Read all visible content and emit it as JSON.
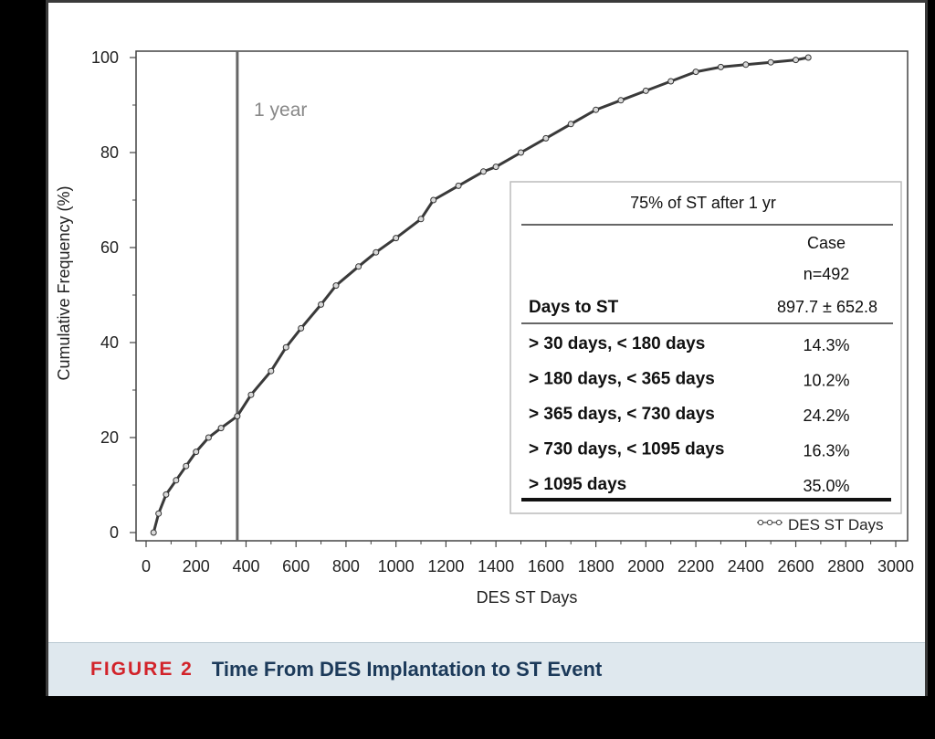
{
  "caption": {
    "label": "FIGURE 2",
    "title": "Time From DES Implantation to ST Event"
  },
  "chart_data": {
    "type": "line",
    "xlabel": "DES ST Days",
    "ylabel": "Cumulative Frequency (%)",
    "xlim": [
      0,
      3000
    ],
    "ylim": [
      0,
      100
    ],
    "x_ticks": [
      "0",
      "200",
      "400",
      "600",
      "800",
      "1000",
      "1200",
      "1400",
      "1600",
      "1800",
      "2000",
      "2200",
      "2400",
      "2600",
      "2800",
      "3000"
    ],
    "y_ticks": [
      "0",
      "20",
      "40",
      "60",
      "80",
      "100"
    ],
    "reference_line": {
      "x": 365,
      "label": "1 year"
    },
    "legend": {
      "label": "DES ST Days",
      "position": "bottom-right"
    },
    "series": [
      {
        "name": "DES ST Days",
        "x": [
          30,
          50,
          80,
          120,
          160,
          200,
          250,
          300,
          365,
          420,
          500,
          560,
          620,
          700,
          760,
          850,
          920,
          1000,
          1100,
          1150,
          1250,
          1350,
          1400,
          1500,
          1600,
          1700,
          1800,
          1900,
          2000,
          2100,
          2200,
          2300,
          2400,
          2500,
          2600,
          2650
        ],
        "y": [
          0,
          4,
          8,
          11,
          14,
          17,
          20,
          22,
          24.5,
          29,
          34,
          39,
          43,
          48,
          52,
          56,
          59,
          62,
          66,
          70,
          73,
          76,
          77,
          80,
          83,
          86,
          89,
          91,
          93,
          95,
          97,
          98,
          98.5,
          99,
          99.5,
          100
        ]
      }
    ]
  },
  "table": {
    "header": "75% of ST after 1 yr",
    "col_header_1": "Case",
    "col_header_2": "n=492",
    "summary_label": "Days to ST",
    "summary_value": "897.7 ± 652.8",
    "rows": [
      {
        "label": "> 30 days, < 180 days",
        "value": "14.3%"
      },
      {
        "label": "> 180 days, < 365 days",
        "value": "10.2%"
      },
      {
        "label": "> 365 days, < 730 days",
        "value": "24.2%"
      },
      {
        "label": "> 730 days, < 1095 days",
        "value": "16.3%"
      },
      {
        "label": "> 1095 days",
        "value": "35.0%"
      }
    ]
  }
}
